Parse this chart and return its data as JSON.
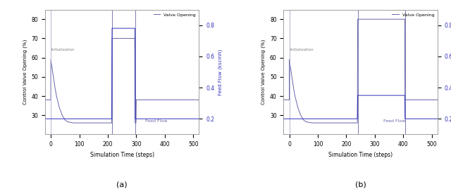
{
  "fig_width": 6.4,
  "fig_height": 2.72,
  "dpi": 100,
  "subplot_label_a": "(a)",
  "subplot_label_b": "(b)",
  "xlabel": "Simulation Time (steps)",
  "ylabel_left": "Control Valve Opening (%)",
  "ylabel_right": "Feed Flow (kscmh)",
  "xlim": [
    -20,
    520
  ],
  "ylim_left": [
    20,
    85
  ],
  "ylim_right": [
    0.1,
    0.9
  ],
  "yticks_left": [
    30,
    40,
    50,
    60,
    70,
    80
  ],
  "yticks_right": [
    0.2,
    0.4,
    0.6,
    0.8
  ],
  "xticks": [
    0,
    100,
    200,
    300,
    400,
    500
  ],
  "line_color": "#6666aa",
  "legend_valve": "Valve Opening",
  "legend_feed": "Feed Flow",
  "init_label": "Initialization",
  "plot_a": {
    "valve_x": [
      -20,
      0,
      0,
      3,
      6,
      10,
      15,
      20,
      30,
      40,
      50,
      60,
      80,
      100,
      120,
      140,
      160,
      180,
      200,
      214,
      215,
      216,
      217,
      218,
      290,
      294,
      295,
      296,
      297,
      298,
      299,
      300,
      301,
      305,
      320,
      350,
      400,
      450,
      500,
      520
    ],
    "valve_y": [
      38,
      38,
      59,
      56,
      53,
      49,
      44,
      40,
      34,
      30,
      27.5,
      26.5,
      26,
      26,
      26,
      26,
      26,
      26,
      26,
      26,
      70,
      70,
      70,
      70,
      70,
      70,
      70,
      26,
      26,
      26,
      26,
      38,
      38,
      38,
      38,
      38,
      38,
      38,
      38,
      38
    ],
    "feed_x": [
      -20,
      214,
      215,
      295,
      296,
      520
    ],
    "feed_y": [
      0.2,
      0.2,
      0.78,
      0.78,
      0.2,
      0.2
    ],
    "init_vline_x": 0,
    "disturbance_vline1_x": 215,
    "disturbance_vline2_x": 296
  },
  "plot_b": {
    "valve_x": [
      -20,
      0,
      0,
      3,
      6,
      10,
      15,
      20,
      30,
      40,
      50,
      60,
      80,
      100,
      120,
      140,
      160,
      180,
      200,
      220,
      239,
      240,
      241,
      260,
      280,
      300,
      320,
      340,
      360,
      380,
      400,
      404,
      405,
      406,
      407,
      420,
      450,
      500,
      520
    ],
    "valve_y": [
      38,
      38,
      59,
      56,
      53,
      49,
      44,
      40,
      34,
      30,
      27.5,
      26.5,
      26,
      26,
      26,
      26,
      26,
      26,
      26,
      26,
      26,
      80,
      80,
      80,
      80,
      80,
      80,
      80,
      80,
      80,
      80,
      80,
      80,
      38,
      38,
      38,
      38,
      38,
      38
    ],
    "feed_x": [
      -20,
      239,
      240,
      405,
      406,
      520
    ],
    "feed_y": [
      0.2,
      0.2,
      0.35,
      0.35,
      0.2,
      0.2
    ],
    "init_vline_x": 0,
    "disturbance_vline1_x": 240,
    "disturbance_vline2_x": 406
  }
}
